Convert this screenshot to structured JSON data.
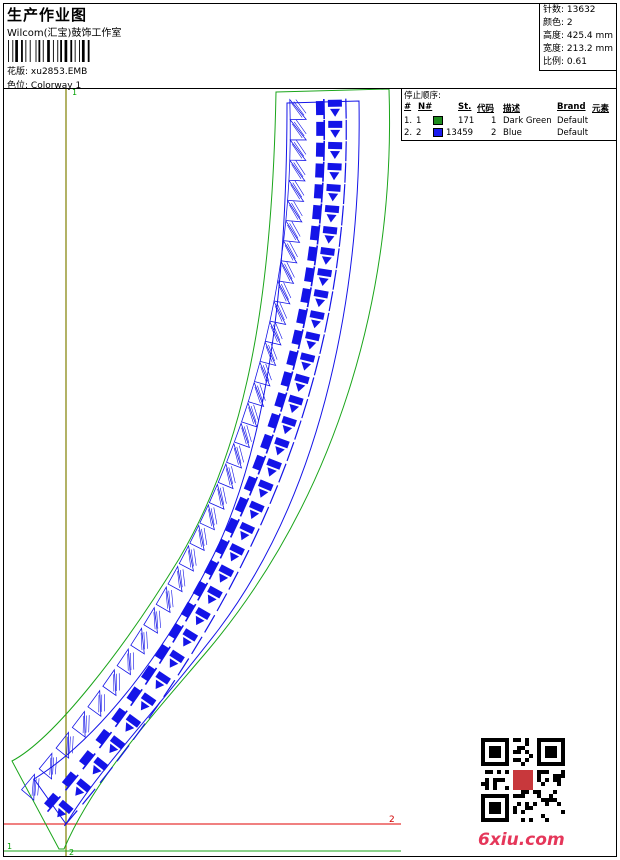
{
  "header": {
    "title": "生产作业图",
    "company": "Wilcom(汇宝)鼓饰工作室",
    "pattern_label": "花版:",
    "pattern_value": "xu2853.EMB",
    "colorway_label": "色位:",
    "colorway_value": "Colorway 1"
  },
  "stats": {
    "stitches": "针数: 13632",
    "colors": "颜色: 2",
    "height": "高度: 425.4 mm",
    "width": "宽度: 213.2 mm",
    "scale": "比例: 0.61"
  },
  "stop_order": {
    "title": "停止顺序:",
    "headers": {
      "num": "#",
      "n": "N#",
      "st": "St.",
      "code": "代码",
      "desc": "描述",
      "brand": "Brand",
      "element": "元素"
    },
    "rows": [
      {
        "num": "1.",
        "n": "1",
        "st": "171",
        "code": "1",
        "desc": "Dark Green",
        "brand": "Default",
        "color": "#1e8c1e"
      },
      {
        "num": "2.",
        "n": "2",
        "st": "13459",
        "code": "2",
        "desc": "Blue",
        "brand": "Default",
        "color": "#1a1aee"
      }
    ]
  },
  "axis_labels": {
    "top_green": "1",
    "bottom_green_left": "1",
    "bottom_green_mid": "2",
    "red_right": "2"
  },
  "watermark": "6xiu.com",
  "colors": {
    "design_blue": "#1414e8",
    "outline_green": "#1aa51a",
    "guide_olive": "#808000",
    "guide_red": "#e00000"
  }
}
